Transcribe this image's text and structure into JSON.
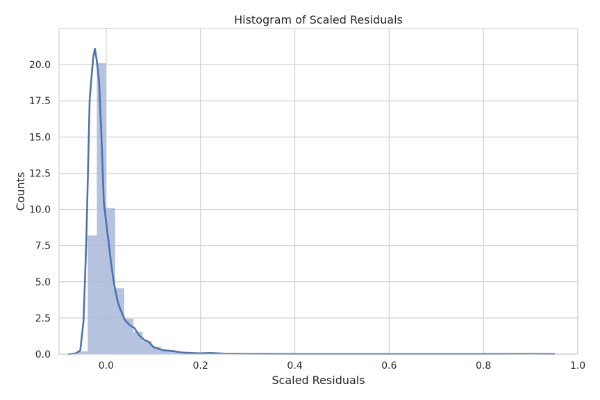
{
  "chart_data": {
    "type": "bar",
    "title": "Histogram of Scaled Residuals",
    "xlabel": "Scaled Residuals",
    "ylabel": "Counts",
    "xlim": [
      -0.1,
      1.0
    ],
    "ylim": [
      0,
      22.5
    ],
    "grid": true,
    "x_ticks": [
      0.0,
      0.2,
      0.4,
      0.6,
      0.8,
      1.0
    ],
    "x_tick_labels": [
      "0.0",
      "0.2",
      "0.4",
      "0.6",
      "0.8",
      "1.0"
    ],
    "y_ticks": [
      0,
      2.5,
      5.0,
      7.5,
      10.0,
      12.5,
      15.0,
      17.5,
      20.0
    ],
    "y_tick_labels": [
      "0.0",
      "2.5",
      "5.0",
      "7.5",
      "10.0",
      "12.5",
      "15.0",
      "17.5",
      "20.0"
    ],
    "bin_width": 0.0194,
    "series": [
      {
        "kind": "histogram",
        "color": "#a8b9d9",
        "bins": [
          {
            "x0": -0.078,
            "value": 0.05
          },
          {
            "x0": -0.0586,
            "value": 0.2
          },
          {
            "x0": -0.0392,
            "value": 8.2
          },
          {
            "x0": -0.0198,
            "value": 20.1
          },
          {
            "x0": -0.0004,
            "value": 10.1
          },
          {
            "x0": 0.019,
            "value": 4.55
          },
          {
            "x0": 0.0384,
            "value": 2.45
          },
          {
            "x0": 0.0578,
            "value": 1.55
          },
          {
            "x0": 0.0772,
            "value": 0.9
          },
          {
            "x0": 0.0966,
            "value": 0.5
          },
          {
            "x0": 0.116,
            "value": 0.3
          },
          {
            "x0": 0.1354,
            "value": 0.2
          },
          {
            "x0": 0.1548,
            "value": 0.12
          },
          {
            "x0": 0.1742,
            "value": 0.08
          },
          {
            "x0": 0.1936,
            "value": 0.06
          },
          {
            "x0": 0.213,
            "value": 0.05
          },
          {
            "x0": 0.2324,
            "value": 0.04
          },
          {
            "x0": 0.2518,
            "value": 0.03
          },
          {
            "x0": 0.2712,
            "value": 0.02
          },
          {
            "x0": 0.2906,
            "value": 0.02
          }
        ]
      },
      {
        "kind": "kde",
        "color": "#4c72b0",
        "x": [
          -0.08,
          -0.065,
          -0.055,
          -0.048,
          -0.042,
          -0.035,
          -0.03,
          -0.027,
          -0.024,
          -0.02,
          -0.015,
          -0.01,
          -0.005,
          0.0,
          0.005,
          0.01,
          0.015,
          0.02,
          0.025,
          0.03,
          0.04,
          0.05,
          0.06,
          0.07,
          0.08,
          0.09,
          0.1,
          0.11,
          0.12,
          0.14,
          0.16,
          0.18,
          0.2,
          0.22,
          0.25,
          0.3,
          0.4,
          0.5,
          0.6,
          0.7,
          0.8,
          0.9,
          0.95
        ],
        "y": [
          0.0,
          0.05,
          0.25,
          2.3,
          8.0,
          17.6,
          19.6,
          20.6,
          21.1,
          20.3,
          18.8,
          15.0,
          10.5,
          9.1,
          7.8,
          6.4,
          5.2,
          4.3,
          3.55,
          3.1,
          2.35,
          2.0,
          1.8,
          1.3,
          1.0,
          0.85,
          0.5,
          0.38,
          0.28,
          0.22,
          0.12,
          0.08,
          0.06,
          0.08,
          0.04,
          0.03,
          0.02,
          0.02,
          0.02,
          0.02,
          0.02,
          0.03,
          0.02
        ]
      }
    ]
  }
}
